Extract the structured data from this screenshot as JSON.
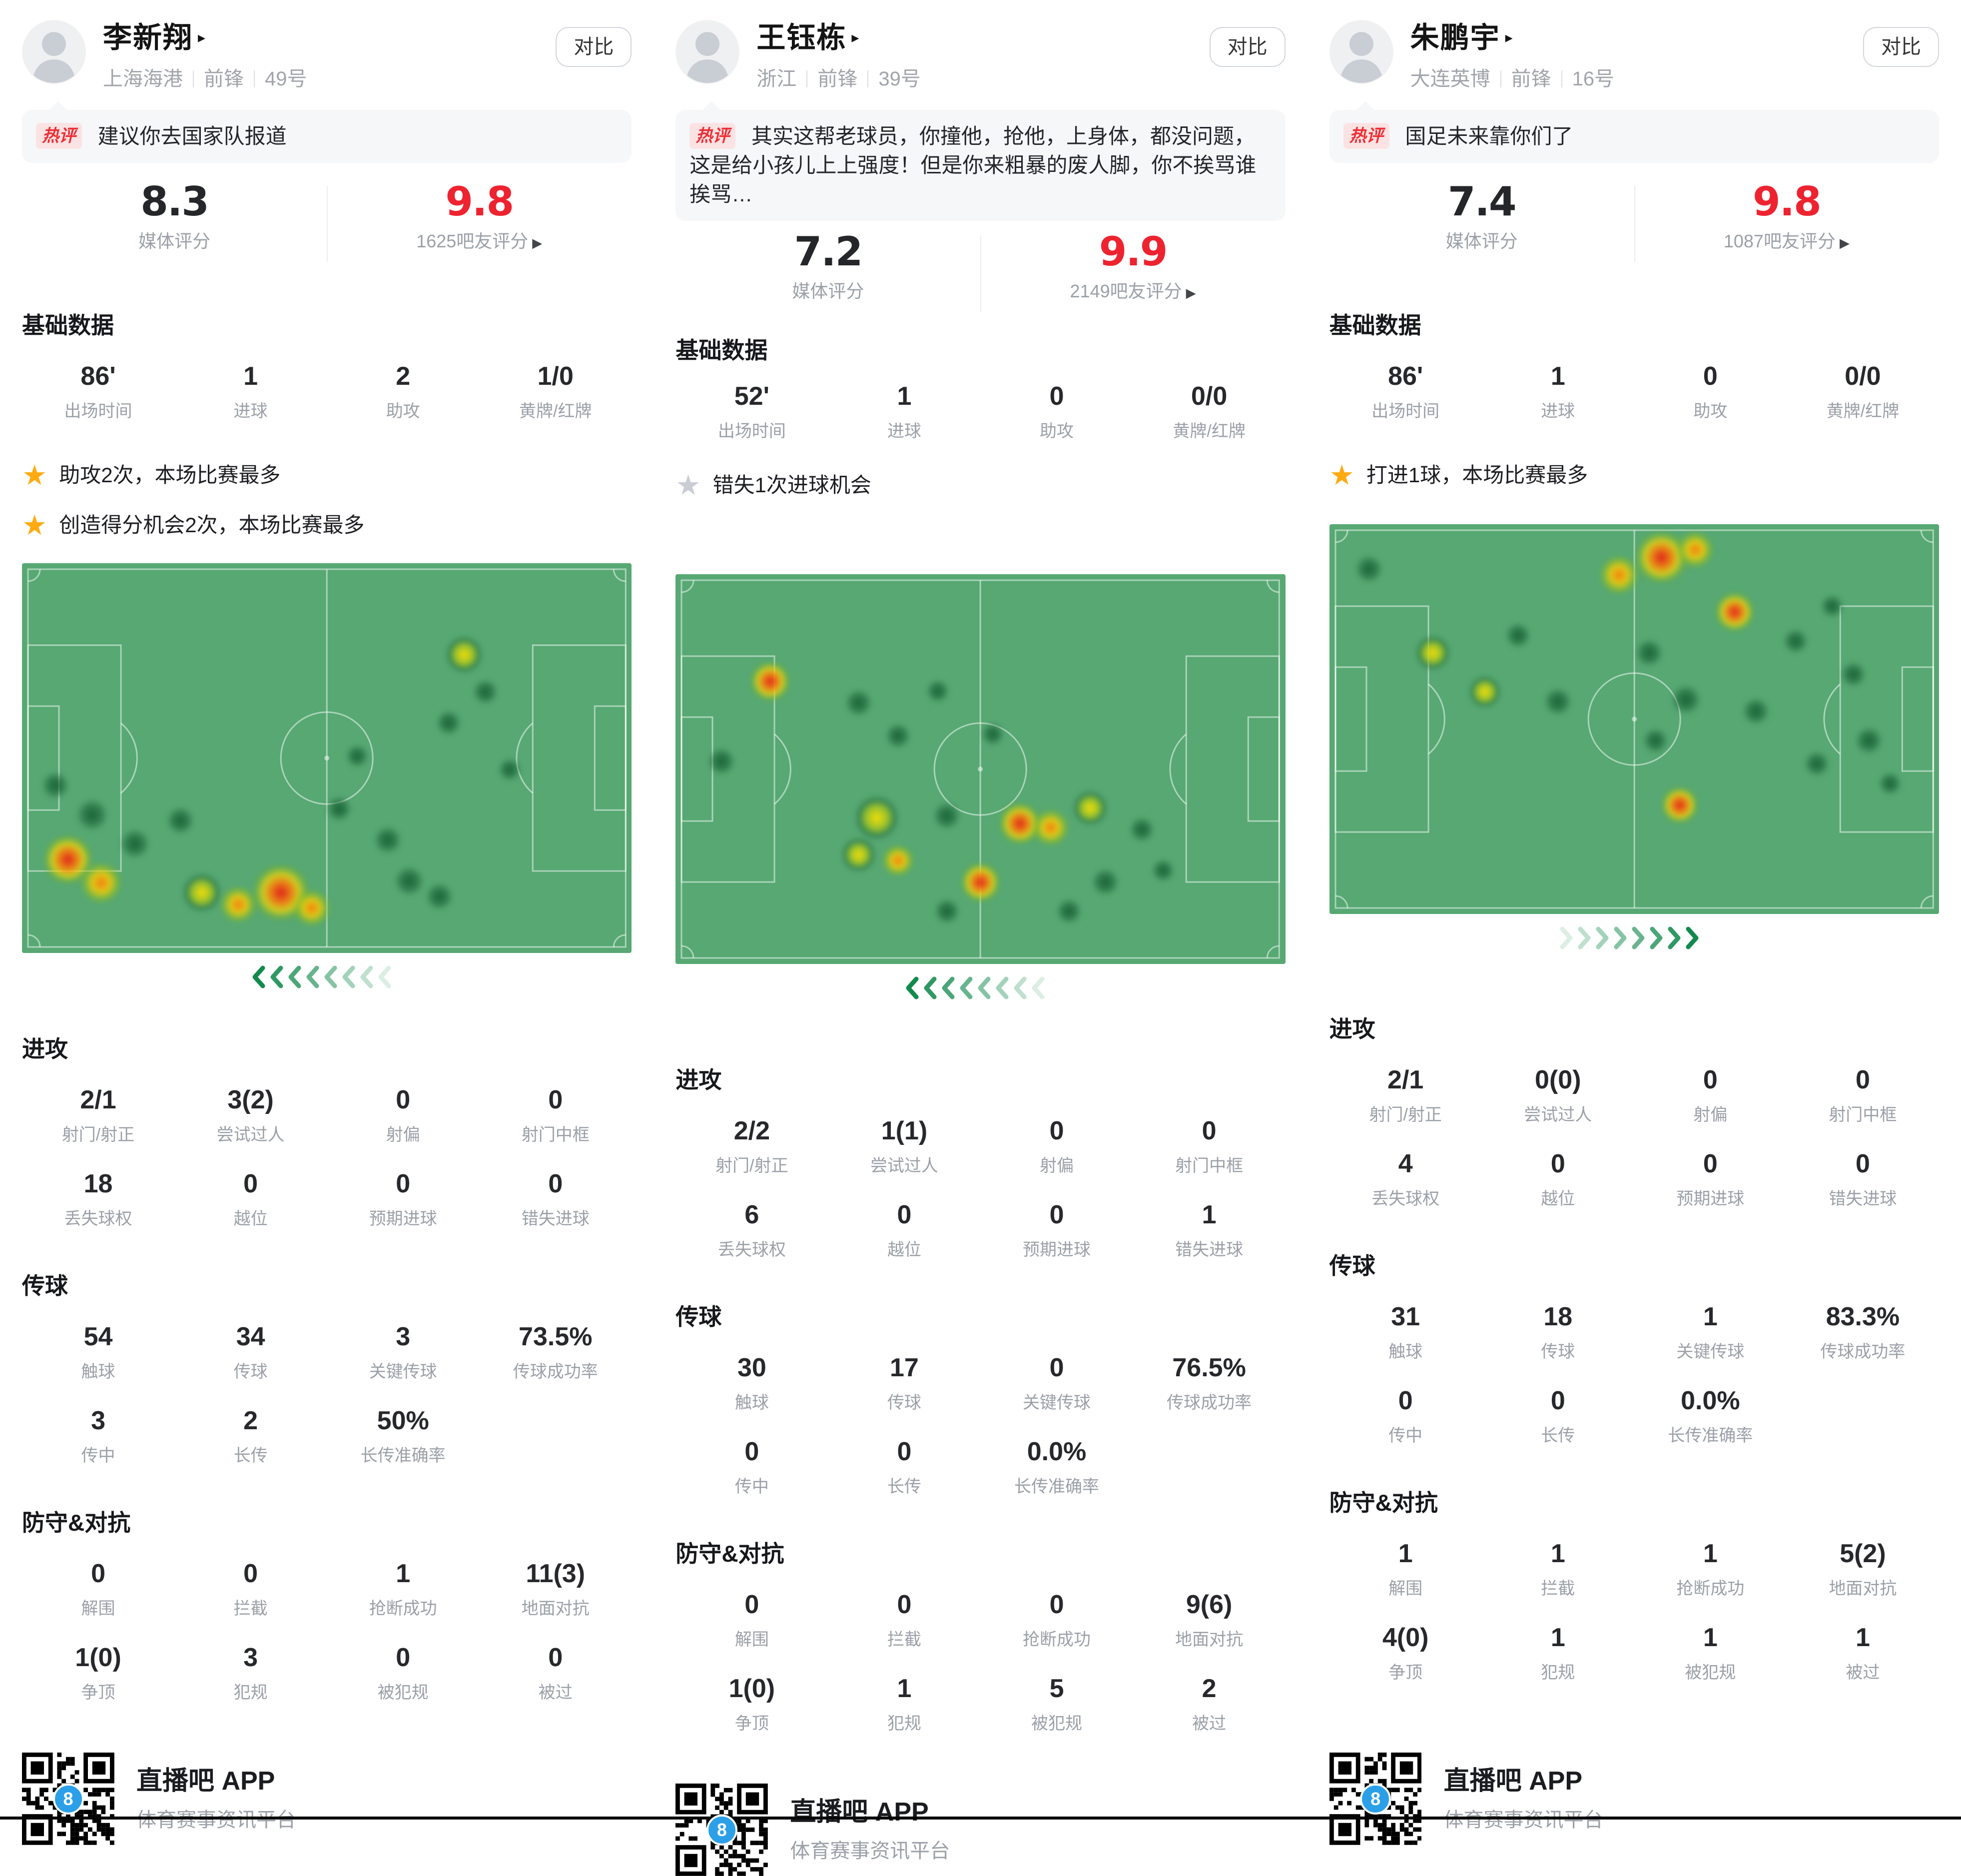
{
  "shared": {
    "compare_label": "对比",
    "hot_badge": "热评",
    "media_rating_label": "媒体评分",
    "basic_data_title": "基础数据",
    "basic_labels": [
      "出场时间",
      "进球",
      "助攻",
      "黄牌/红牌"
    ],
    "attack": {
      "title": "进攻",
      "labels_row1": [
        "射门/射正",
        "尝试过人",
        "射偏",
        "射门中框"
      ],
      "labels_row2": [
        "丢失球权",
        "越位",
        "预期进球",
        "错失进球"
      ]
    },
    "passing": {
      "title": "传球",
      "labels_row1": [
        "触球",
        "传球",
        "关键传球",
        "传球成功率"
      ],
      "labels_row2": [
        "传中",
        "长传",
        "长传准确率"
      ]
    },
    "defense": {
      "title": "防守&对抗",
      "labels_row1": [
        "解围",
        "拦截",
        "抢断成功",
        "地面对抗"
      ],
      "labels_row2": [
        "争顶",
        "犯规",
        "被犯规",
        "被过"
      ]
    },
    "icons": {
      "star": "★",
      "name_arrow": "▸",
      "fan_arrow": "▶"
    },
    "footer": {
      "app_name": "直播吧 APP",
      "tagline": "体育赛事资讯平台",
      "qr_logo": "8"
    }
  },
  "colors": {
    "accent_red": "#ee2330",
    "hot_badge_bg": "#fbe3e4",
    "star_gold": "#ffaa10",
    "star_gray": "#c8cdd6",
    "pitch_green": "#57a873",
    "chevron_green": "#128a4d",
    "heat_green": "#105a2d",
    "heat_yellow": "#ffe100",
    "heat_orange": "#ff780a",
    "heat_red": "#e11e19",
    "qr_logo_blue": "#2ba0e8"
  },
  "players": [
    {
      "name": "李新翔",
      "team": "上海海港",
      "position": "前锋",
      "number": "49号",
      "hot_comment": "建议你去国家队报道",
      "media_rating": "8.3",
      "fan_rating": "9.8",
      "fan_rating_label": "1625吧友评分",
      "basic_values": [
        "86'",
        "1",
        "2",
        "1/0"
      ],
      "highlights": [
        {
          "star": "gold",
          "text": "助攻2次，本场比赛最多"
        },
        {
          "star": "gold",
          "text": "创造得分机会2次，本场比赛最多"
        }
      ],
      "attack_row1": [
        "2/1",
        "3(2)",
        "0",
        "0"
      ],
      "attack_row2": [
        "18",
        "0",
        "0",
        "0"
      ],
      "passing_row1": [
        "54",
        "34",
        "3",
        "73.5%"
      ],
      "passing_row2": [
        "3",
        "2",
        "50%"
      ],
      "defense_row1": [
        "0",
        "0",
        "1",
        "11(3)"
      ],
      "defense_row2": [
        "1(0)",
        "3",
        "0",
        "0"
      ],
      "heatmap_direction": "left",
      "heatmap": [
        [
          0.055,
          0.57,
          24,
          "g"
        ],
        [
          0.115,
          0.645,
          28,
          "g"
        ],
        [
          0.075,
          0.76,
          40,
          "r"
        ],
        [
          0.13,
          0.82,
          34,
          "o"
        ],
        [
          0.185,
          0.72,
          26,
          "g"
        ],
        [
          0.26,
          0.66,
          24,
          "g"
        ],
        [
          0.295,
          0.845,
          32,
          "y"
        ],
        [
          0.355,
          0.875,
          30,
          "o"
        ],
        [
          0.425,
          0.845,
          46,
          "r"
        ],
        [
          0.475,
          0.885,
          30,
          "o"
        ],
        [
          0.52,
          0.63,
          22,
          "g"
        ],
        [
          0.55,
          0.495,
          20,
          "g"
        ],
        [
          0.6,
          0.71,
          24,
          "g"
        ],
        [
          0.635,
          0.815,
          26,
          "g"
        ],
        [
          0.685,
          0.855,
          24,
          "g"
        ],
        [
          0.7,
          0.41,
          22,
          "g"
        ],
        [
          0.725,
          0.235,
          30,
          "y"
        ],
        [
          0.76,
          0.33,
          22,
          "g"
        ],
        [
          0.8,
          0.53,
          20,
          "g"
        ]
      ]
    },
    {
      "name": "王钰栋",
      "team": "浙江",
      "position": "前锋",
      "number": "39号",
      "hot_comment": "其实这帮老球员，你撞他，抢他，上身体，都没问题，这是给小孩儿上上强度！但是你来粗暴的废人脚，你不挨骂谁挨骂…",
      "media_rating": "7.2",
      "fan_rating": "9.9",
      "fan_rating_label": "2149吧友评分",
      "basic_values": [
        "52'",
        "1",
        "0",
        "0/0"
      ],
      "highlights": [
        {
          "star": "gray",
          "text": "错失1次进球机会"
        }
      ],
      "attack_row1": [
        "2/2",
        "1(1)",
        "0",
        "0"
      ],
      "attack_row2": [
        "6",
        "0",
        "0",
        "1"
      ],
      "passing_row1": [
        "30",
        "17",
        "0",
        "76.5%"
      ],
      "passing_row2": [
        "0",
        "0",
        "0.0%"
      ],
      "defense_row1": [
        "0",
        "0",
        "0",
        "9(6)"
      ],
      "defense_row2": [
        "1(0)",
        "1",
        "5",
        "2"
      ],
      "heatmap_direction": "left",
      "heatmap": [
        [
          0.155,
          0.275,
          32,
          "r"
        ],
        [
          0.075,
          0.48,
          24,
          "g"
        ],
        [
          0.3,
          0.33,
          24,
          "g"
        ],
        [
          0.365,
          0.415,
          22,
          "g"
        ],
        [
          0.43,
          0.3,
          20,
          "g"
        ],
        [
          0.52,
          0.41,
          20,
          "g"
        ],
        [
          0.33,
          0.625,
          36,
          "y"
        ],
        [
          0.3,
          0.72,
          28,
          "y"
        ],
        [
          0.365,
          0.735,
          26,
          "o"
        ],
        [
          0.445,
          0.62,
          24,
          "g"
        ],
        [
          0.5,
          0.79,
          32,
          "r"
        ],
        [
          0.445,
          0.865,
          22,
          "g"
        ],
        [
          0.565,
          0.64,
          34,
          "r"
        ],
        [
          0.615,
          0.65,
          30,
          "o"
        ],
        [
          0.68,
          0.6,
          28,
          "y"
        ],
        [
          0.645,
          0.865,
          22,
          "g"
        ],
        [
          0.705,
          0.79,
          24,
          "g"
        ],
        [
          0.765,
          0.655,
          22,
          "g"
        ],
        [
          0.8,
          0.76,
          20,
          "g"
        ]
      ]
    },
    {
      "name": "朱鹏宇",
      "team": "大连英博",
      "position": "前锋",
      "number": "16号",
      "hot_comment": "国足未来靠你们了",
      "media_rating": "7.4",
      "fan_rating": "9.8",
      "fan_rating_label": "1087吧友评分",
      "basic_values": [
        "86'",
        "1",
        "0",
        "0/0"
      ],
      "highlights": [
        {
          "star": "gold",
          "text": "打进1球，本场比赛最多"
        }
      ],
      "attack_row1": [
        "2/1",
        "0(0)",
        "0",
        "0"
      ],
      "attack_row2": [
        "4",
        "0",
        "0",
        "0"
      ],
      "passing_row1": [
        "31",
        "18",
        "1",
        "83.3%"
      ],
      "passing_row2": [
        "0",
        "0",
        "0.0%"
      ],
      "defense_row1": [
        "1",
        "1",
        "1",
        "5(2)"
      ],
      "defense_row2": [
        "4(0)",
        "1",
        "1",
        "1"
      ],
      "heatmap_direction": "right",
      "heatmap": [
        [
          0.065,
          0.115,
          24,
          "g"
        ],
        [
          0.17,
          0.33,
          28,
          "y"
        ],
        [
          0.255,
          0.43,
          26,
          "y"
        ],
        [
          0.31,
          0.285,
          22,
          "g"
        ],
        [
          0.375,
          0.455,
          24,
          "g"
        ],
        [
          0.475,
          0.13,
          32,
          "o"
        ],
        [
          0.545,
          0.085,
          42,
          "r"
        ],
        [
          0.6,
          0.065,
          30,
          "o"
        ],
        [
          0.665,
          0.225,
          32,
          "r"
        ],
        [
          0.525,
          0.33,
          24,
          "g"
        ],
        [
          0.585,
          0.45,
          26,
          "g"
        ],
        [
          0.535,
          0.555,
          22,
          "g"
        ],
        [
          0.575,
          0.72,
          30,
          "r"
        ],
        [
          0.7,
          0.48,
          24,
          "g"
        ],
        [
          0.765,
          0.3,
          22,
          "g"
        ],
        [
          0.825,
          0.21,
          20,
          "g"
        ],
        [
          0.86,
          0.385,
          22,
          "g"
        ],
        [
          0.885,
          0.555,
          24,
          "g"
        ],
        [
          0.92,
          0.665,
          20,
          "g"
        ],
        [
          0.8,
          0.615,
          22,
          "g"
        ]
      ]
    }
  ]
}
